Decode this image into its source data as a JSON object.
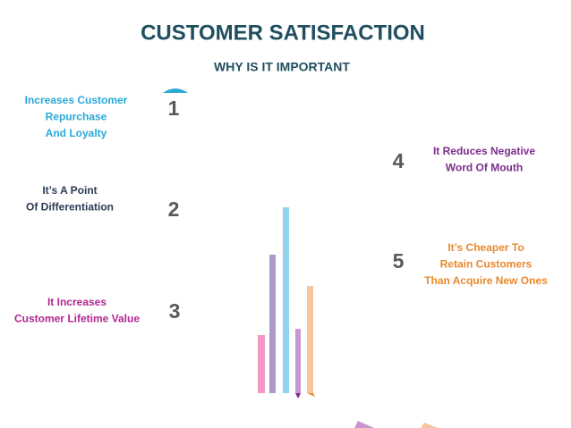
{
  "header": {
    "title": "CUSTOMER SATISFACTION",
    "subtitle": "WHY IS IT IMPORTANT"
  },
  "items": [
    {
      "number": 1,
      "lines": [
        "Increases Customer",
        "Repurchase",
        "And Loyalty"
      ]
    },
    {
      "number": 2,
      "lines": [
        "It’s A Point",
        "Of Differentiation"
      ]
    },
    {
      "number": 3,
      "lines": [
        "It Increases",
        "Customer Lifetime Value"
      ]
    },
    {
      "number": 4,
      "lines": [
        "It Reduces Negative",
        "Word Of Mouth"
      ]
    },
    {
      "number": 5,
      "lines": [
        "It’s Cheaper To",
        "Retain Customers",
        "Than Acquire New Ones"
      ]
    }
  ]
}
